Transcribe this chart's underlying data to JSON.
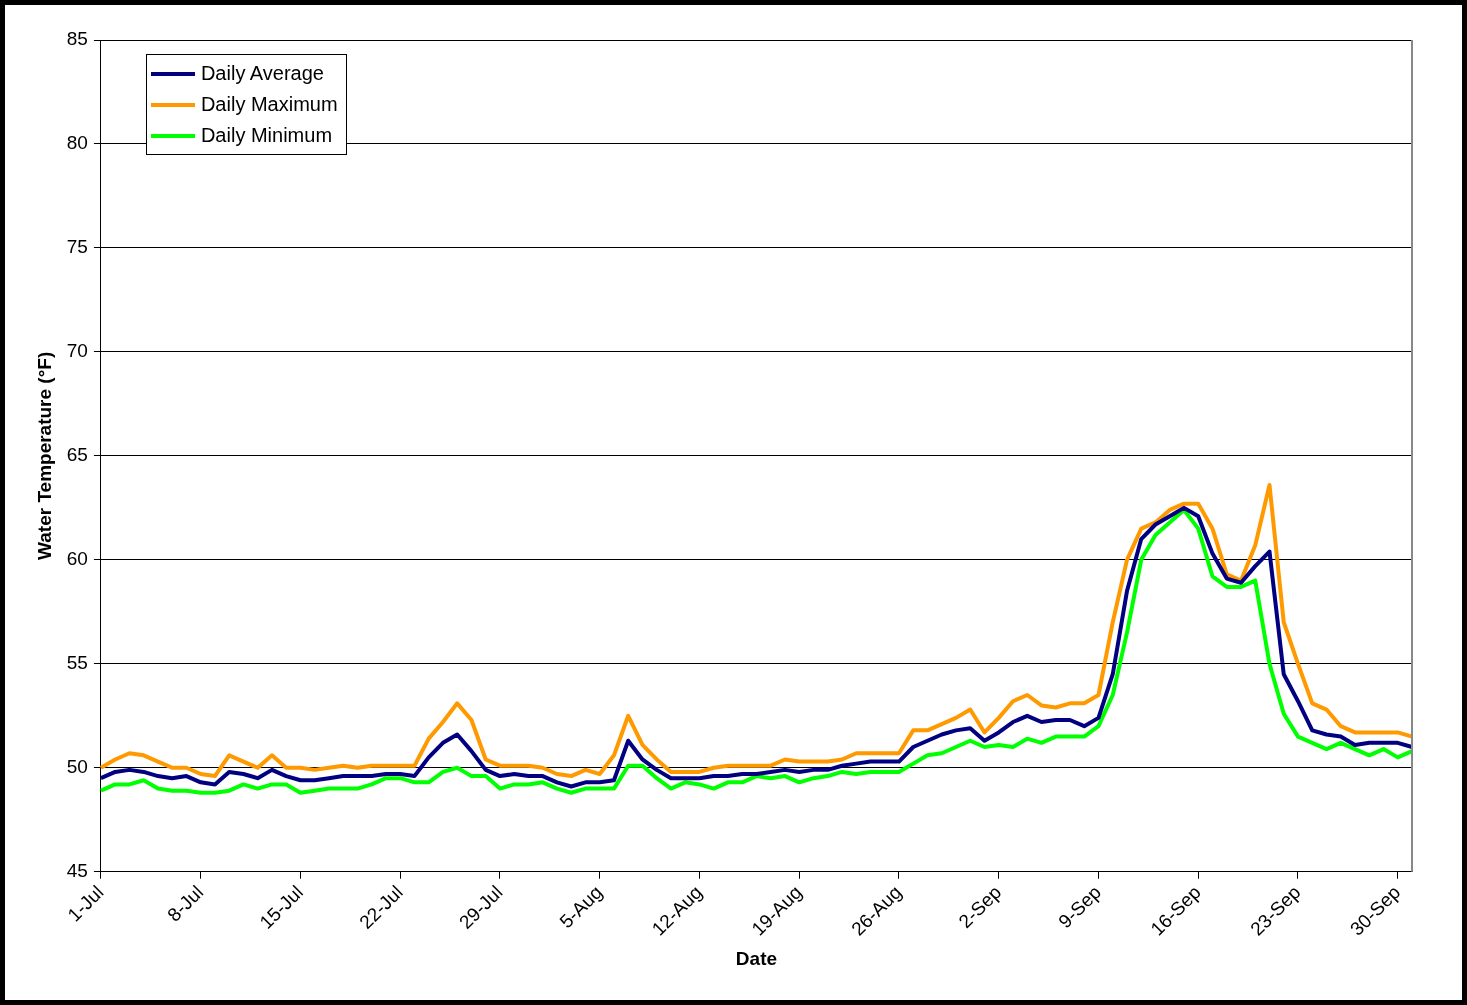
{
  "chart_data": {
    "type": "line",
    "xlabel": "Date",
    "ylabel": "Water Temperature (°F)",
    "categories": [
      "1-Jul",
      null,
      null,
      null,
      null,
      null,
      null,
      "8-Jul",
      null,
      null,
      null,
      null,
      null,
      null,
      "15-Jul",
      null,
      null,
      null,
      null,
      null,
      null,
      "22-Jul",
      null,
      null,
      null,
      null,
      null,
      null,
      "29-Jul",
      null,
      null,
      null,
      null,
      null,
      null,
      "5-Aug",
      null,
      null,
      null,
      null,
      null,
      null,
      "12-Aug",
      null,
      null,
      null,
      null,
      null,
      null,
      "19-Aug",
      null,
      null,
      null,
      null,
      null,
      null,
      "26-Aug",
      null,
      null,
      null,
      null,
      null,
      null,
      "2-Sep",
      null,
      null,
      null,
      null,
      null,
      null,
      "9-Sep",
      null,
      null,
      null,
      null,
      null,
      null,
      "16-Sep",
      null,
      null,
      null,
      null,
      null,
      null,
      "23-Sep",
      null,
      null,
      null,
      null,
      null,
      null,
      "30-Sep",
      null
    ],
    "series": [
      {
        "name": "Daily Average",
        "color": "#000080",
        "values": [
          49.5,
          49.8,
          49.9,
          49.8,
          49.6,
          49.5,
          49.6,
          49.3,
          49.2,
          49.8,
          49.7,
          49.5,
          49.9,
          49.6,
          49.4,
          49.4,
          49.5,
          49.6,
          49.6,
          49.6,
          49.7,
          49.7,
          49.6,
          50.5,
          51.2,
          51.6,
          50.8,
          49.9,
          49.6,
          49.7,
          49.6,
          49.6,
          49.3,
          49.1,
          49.3,
          49.3,
          49.4,
          51.3,
          50.4,
          49.9,
          49.5,
          49.5,
          49.5,
          49.6,
          49.6,
          49.7,
          49.7,
          49.8,
          49.9,
          49.8,
          49.9,
          49.9,
          50.1,
          50.2,
          50.3,
          50.3,
          50.3,
          51.0,
          51.3,
          51.6,
          51.8,
          51.9,
          51.3,
          51.7,
          52.2,
          52.5,
          52.2,
          52.3,
          52.3,
          52.0,
          52.4,
          54.5,
          58.5,
          61.0,
          61.7,
          62.1,
          62.5,
          62.1,
          60.3,
          59.1,
          58.9,
          59.7,
          60.4,
          54.5,
          53.2,
          51.8,
          51.6,
          51.5,
          51.1,
          51.2,
          51.2,
          51.2,
          51.0
        ]
      },
      {
        "name": "Daily Maximum",
        "color": "#ff9900",
        "values": [
          50.0,
          50.4,
          50.7,
          50.6,
          50.3,
          50.0,
          50.0,
          49.7,
          49.6,
          50.6,
          50.3,
          50.0,
          50.6,
          50.0,
          50.0,
          49.9,
          50.0,
          50.1,
          50.0,
          50.1,
          50.1,
          50.1,
          50.1,
          51.4,
          52.2,
          53.1,
          52.3,
          50.4,
          50.1,
          50.1,
          50.1,
          50.0,
          49.7,
          49.6,
          49.9,
          49.7,
          50.6,
          52.5,
          51.1,
          50.4,
          49.8,
          49.8,
          49.8,
          50.0,
          50.1,
          50.1,
          50.1,
          50.1,
          50.4,
          50.3,
          50.3,
          50.3,
          50.4,
          50.7,
          50.7,
          50.7,
          50.7,
          51.8,
          51.8,
          52.1,
          52.4,
          52.8,
          51.7,
          52.4,
          53.2,
          53.5,
          53.0,
          52.9,
          53.1,
          53.1,
          53.5,
          57.0,
          60.0,
          61.5,
          61.8,
          62.4,
          62.7,
          62.7,
          61.5,
          59.3,
          59.0,
          60.7,
          63.6,
          57.0,
          55.0,
          53.1,
          52.8,
          52.0,
          51.7,
          51.7,
          51.7,
          51.7,
          51.5
        ]
      },
      {
        "name": "Daily Minimum",
        "color": "#00ff00",
        "values": [
          48.9,
          49.2,
          49.2,
          49.4,
          49.0,
          48.9,
          48.9,
          48.8,
          48.8,
          48.9,
          49.2,
          49.0,
          49.2,
          49.2,
          48.8,
          48.9,
          49.0,
          49.0,
          49.0,
          49.2,
          49.5,
          49.5,
          49.3,
          49.3,
          49.8,
          50.0,
          49.6,
          49.6,
          49.0,
          49.2,
          49.2,
          49.3,
          49.0,
          48.8,
          49.0,
          49.0,
          49.0,
          50.1,
          50.1,
          49.5,
          49.0,
          49.3,
          49.2,
          49.0,
          49.3,
          49.3,
          49.6,
          49.5,
          49.6,
          49.3,
          49.5,
          49.6,
          49.8,
          49.7,
          49.8,
          49.8,
          49.8,
          50.2,
          50.6,
          50.7,
          51.0,
          51.3,
          51.0,
          51.1,
          51.0,
          51.4,
          51.2,
          51.5,
          51.5,
          51.5,
          52.0,
          53.5,
          56.5,
          60.0,
          61.2,
          61.8,
          62.4,
          61.5,
          59.2,
          58.7,
          58.7,
          59.0,
          55.0,
          52.6,
          51.5,
          51.2,
          50.9,
          51.2,
          50.9,
          50.6,
          50.9,
          50.5,
          50.8
        ]
      }
    ],
    "ylim": [
      45,
      85
    ],
    "yticks": [
      45,
      50,
      55,
      60,
      65,
      70,
      75,
      80,
      85
    ],
    "grid": "y",
    "legend": "top left",
    "marker": "none",
    "line_style": "solid"
  }
}
